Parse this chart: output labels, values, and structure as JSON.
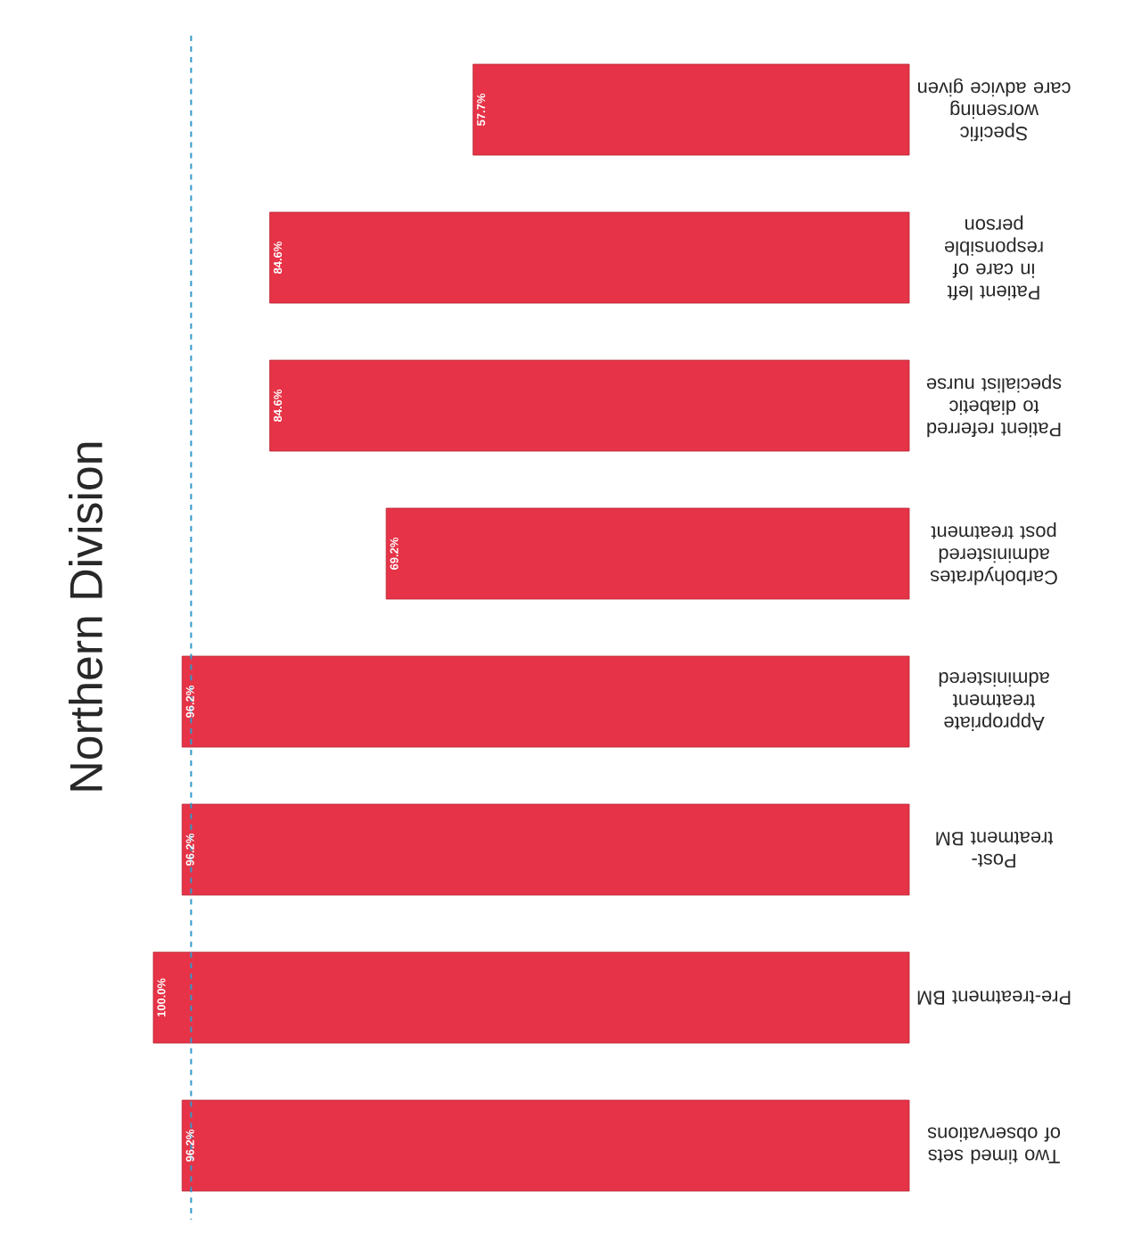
{
  "chart_data": {
    "type": "bar",
    "orientation": "horizontal",
    "title": "Northern Division",
    "categories": [
      "Specific worsening care advice given",
      "Patient left in care of responsible person",
      "Patient referred to diabetic specialist nurse",
      "Carbohydrates administered post treatment",
      "Appropriate treatment administered",
      "Post-treatment BM",
      "Pre-treatment BM",
      "Two timed sets of observations"
    ],
    "values": [
      57.7,
      84.6,
      84.6,
      69.2,
      96.2,
      96.2,
      100.0,
      96.2
    ],
    "value_labels": [
      "57.7%",
      "84.6%",
      "84.6%",
      "69.2%",
      "96.2%",
      "96.2%",
      "100.0%",
      "96.2%"
    ],
    "color": "#e63347",
    "ref_lines": [
      {
        "axis": "x",
        "value": 95,
        "color": "#3399cc",
        "line_style": "dashed"
      }
    ]
  }
}
